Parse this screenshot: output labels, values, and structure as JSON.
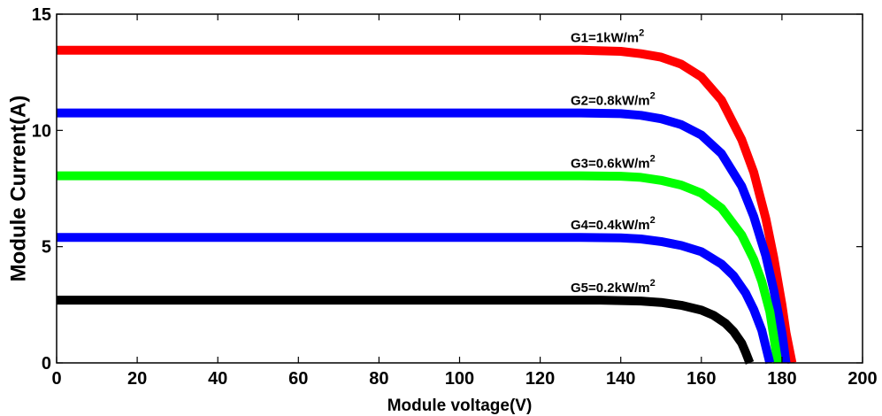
{
  "chart_data": {
    "type": "line",
    "xlabel": "Module voltage(V)",
    "ylabel": "Module Current(A)",
    "xlim": [
      0,
      200
    ],
    "ylim": [
      0,
      15
    ],
    "x_ticks": [
      0,
      20,
      40,
      60,
      80,
      100,
      120,
      140,
      160,
      180,
      200
    ],
    "y_ticks": [
      0,
      5,
      10,
      15
    ],
    "grid": false,
    "legend": "none",
    "series": [
      {
        "label": "G1=1kW/m",
        "label_sup": "2",
        "color": "#ff0000",
        "x": [
          0,
          130,
          140,
          145,
          150,
          155,
          160,
          165,
          170,
          173,
          176,
          178,
          180,
          181,
          182.5
        ],
        "y": [
          13.45,
          13.45,
          13.4,
          13.3,
          13.15,
          12.85,
          12.3,
          11.3,
          9.6,
          8.2,
          6.2,
          4.5,
          2.5,
          1.3,
          0
        ]
      },
      {
        "label": "G2=0.8kW/m",
        "label_sup": "2",
        "color": "#0000ff",
        "x": [
          0,
          130,
          140,
          145,
          150,
          155,
          160,
          165,
          170,
          173,
          176,
          178,
          180,
          181
        ],
        "y": [
          10.75,
          10.75,
          10.72,
          10.65,
          10.5,
          10.25,
          9.8,
          9.0,
          7.6,
          6.3,
          4.6,
          3.1,
          1.3,
          0
        ]
      },
      {
        "label": "G3=0.6kW/m",
        "label_sup": "2",
        "color": "#00ff00",
        "x": [
          0,
          130,
          140,
          145,
          150,
          155,
          160,
          165,
          170,
          173,
          175,
          177,
          179
        ],
        "y": [
          8.05,
          8.05,
          8.03,
          7.98,
          7.85,
          7.65,
          7.3,
          6.65,
          5.5,
          4.45,
          3.5,
          2.2,
          0
        ]
      },
      {
        "label": "G4=0.4kW/m",
        "label_sup": "2",
        "color": "#0000ff",
        "x": [
          0,
          130,
          140,
          145,
          150,
          155,
          160,
          165,
          168,
          171,
          173,
          175,
          177
        ],
        "y": [
          5.4,
          5.4,
          5.38,
          5.33,
          5.22,
          5.05,
          4.78,
          4.25,
          3.75,
          3.0,
          2.3,
          1.4,
          0
        ]
      },
      {
        "label": "G5=0.2kW/m",
        "label_sup": "2",
        "color": "#000000",
        "x": [
          0,
          135,
          145,
          150,
          155,
          160,
          163,
          166,
          168,
          170,
          171,
          172
        ],
        "y": [
          2.7,
          2.7,
          2.66,
          2.6,
          2.48,
          2.27,
          2.05,
          1.7,
          1.35,
          0.85,
          0.45,
          0
        ]
      }
    ]
  }
}
